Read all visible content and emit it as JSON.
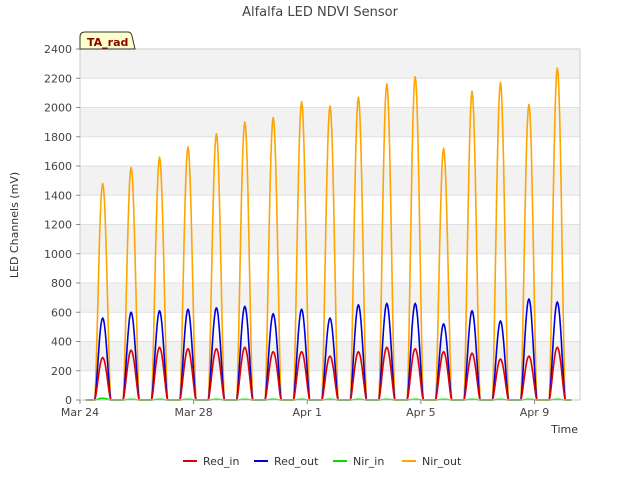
{
  "chart_data": {
    "type": "line",
    "title": "Alfalfa LED NDVI Sensor",
    "xlabel": "Time",
    "ylabel": "LED Channels (mV)",
    "badge": "TA_rad",
    "ylim": [
      0,
      2400
    ],
    "yticks": [
      0,
      200,
      400,
      600,
      800,
      1000,
      1200,
      1400,
      1600,
      1800,
      2000,
      2200,
      2400
    ],
    "xlim_days": [
      0,
      17.6
    ],
    "xticks": [
      {
        "day": 0,
        "label": "Mar 24"
      },
      {
        "day": 4,
        "label": "Mar 28"
      },
      {
        "day": 8,
        "label": "Apr 1"
      },
      {
        "day": 12,
        "label": "Apr 5"
      },
      {
        "day": 16,
        "label": "Apr 9"
      }
    ],
    "day_x_days": [
      0.8,
      1.8,
      2.8,
      3.8,
      4.8,
      5.8,
      6.8,
      7.8,
      8.8,
      9.8,
      10.8,
      11.8,
      12.8,
      13.8,
      14.8,
      15.8,
      16.8
    ],
    "series": [
      {
        "name": "Red_in",
        "color": "#dd0000",
        "daily_peaks": [
          290,
          340,
          360,
          350,
          350,
          360,
          330,
          330,
          300,
          330,
          360,
          350,
          330,
          320,
          280,
          300,
          360
        ]
      },
      {
        "name": "Red_out",
        "color": "#0000dd",
        "daily_peaks": [
          560,
          600,
          610,
          620,
          630,
          640,
          590,
          620,
          560,
          650,
          660,
          660,
          520,
          610,
          540,
          690,
          670
        ]
      },
      {
        "name": "Nir_in",
        "color": "#00dd00",
        "daily_peaks": [
          12,
          5,
          5,
          5,
          5,
          5,
          5,
          5,
          5,
          5,
          5,
          5,
          5,
          5,
          5,
          5,
          5
        ]
      },
      {
        "name": "Nir_out",
        "color": "#ffa500",
        "daily_peaks": [
          1480,
          1590,
          1660,
          1730,
          1820,
          1900,
          1930,
          2040,
          2010,
          2070,
          2160,
          2210,
          1720,
          2110,
          2170,
          2020,
          2270
        ]
      }
    ]
  }
}
